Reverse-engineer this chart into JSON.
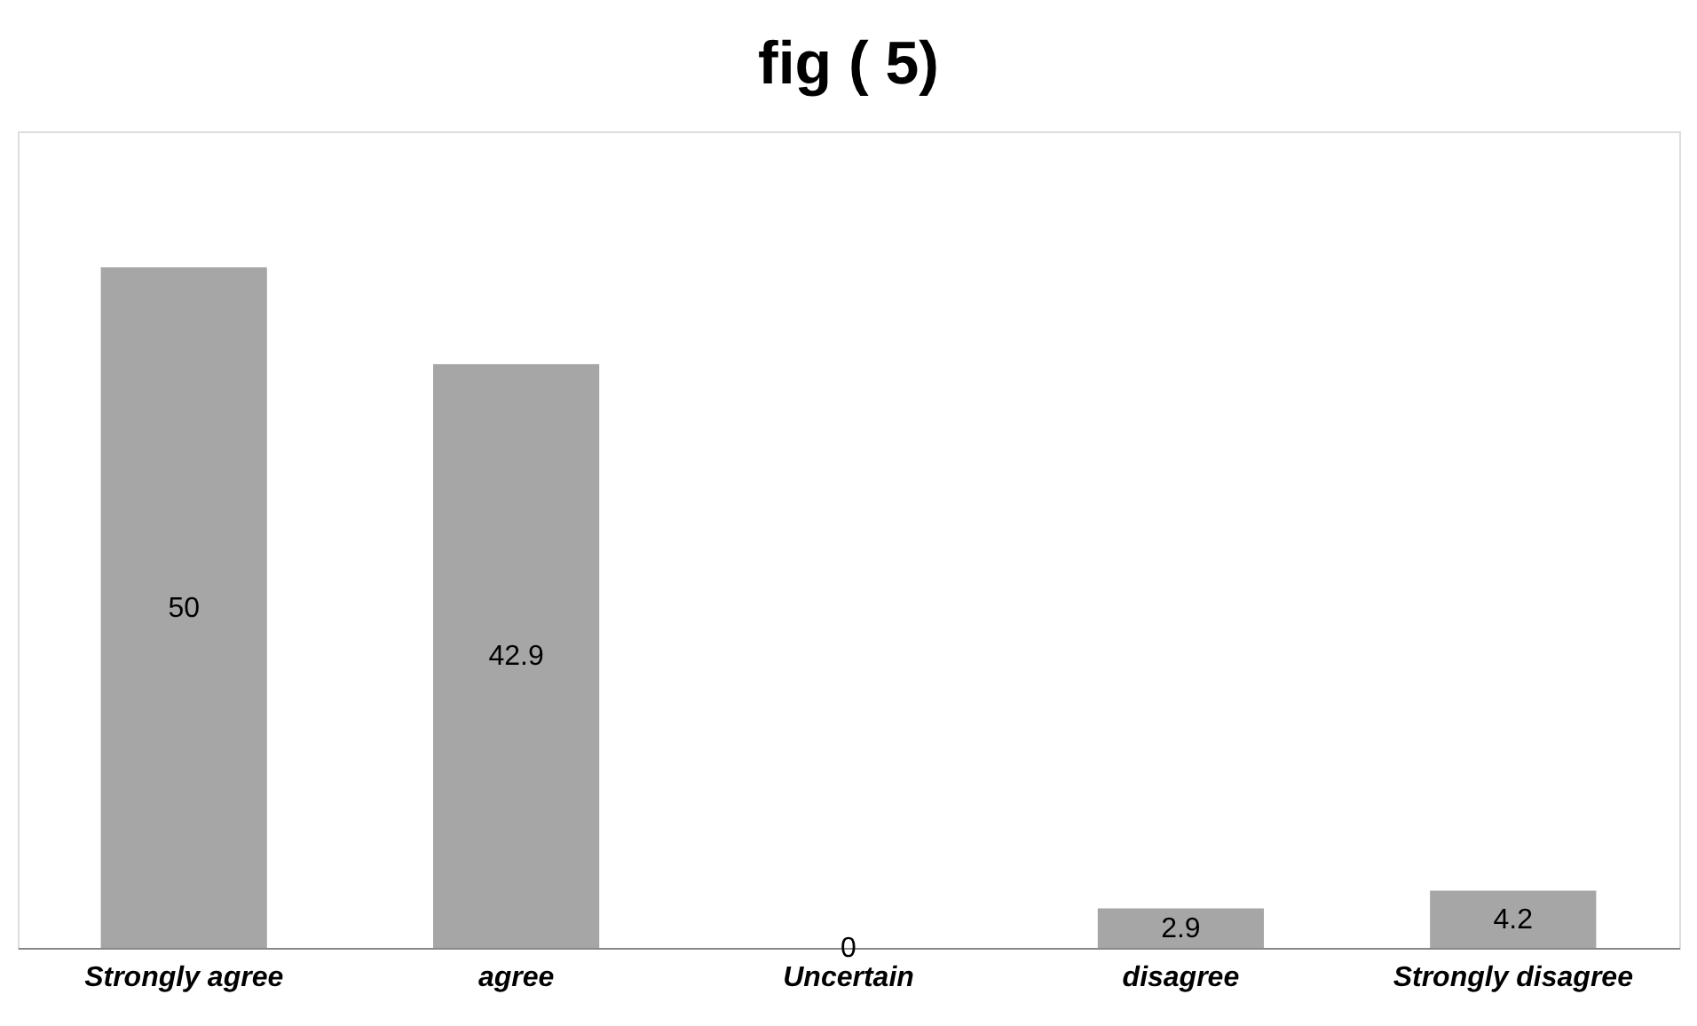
{
  "chart_data": {
    "type": "bar",
    "title": "fig ( 5)",
    "categories": [
      "Strongly agree",
      "agree",
      "Uncertain",
      "disagree",
      "Strongly disagree"
    ],
    "values": [
      50,
      42.9,
      0,
      2.9,
      4.2
    ],
    "color": "#a6a6a6",
    "ylim": [
      0,
      60
    ],
    "data_labels": true,
    "grid": false
  }
}
